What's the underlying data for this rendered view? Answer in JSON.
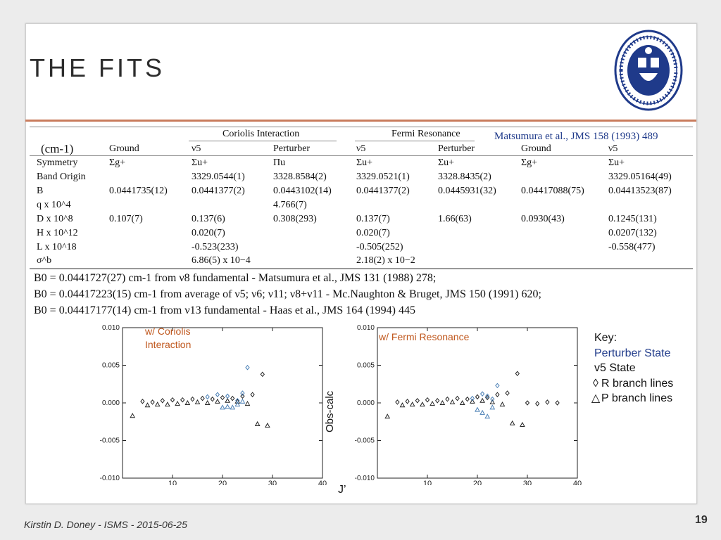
{
  "title": "THE FITS",
  "citation": "Matsumura et al., JMS 158 (1993) 489",
  "table": {
    "unit_label": "(cm-1)",
    "group_headers": [
      "Coriolis Interaction",
      "Fermi Resonance"
    ],
    "columns": [
      "Ground",
      "ν5",
      "Perturber",
      "ν5",
      "Perturber",
      "Ground",
      "ν5"
    ],
    "row_labels": [
      "Symmetry",
      "Band Origin",
      "B",
      "q x 10^4",
      "D x 10^8",
      "H x 10^12",
      "L x 10^18",
      "σ^b"
    ],
    "symmetry": [
      "Σg+",
      "Σu+",
      "Πu",
      "Σu+",
      "Σu+",
      "Σg+",
      "Σu+"
    ],
    "band_origin": [
      "",
      "3329.0544(1)",
      "3328.8584(2)",
      "3329.0521(1)",
      "3328.8435(2)",
      "",
      "3329.05164(49)"
    ],
    "B": [
      "0.0441735(12)",
      "0.0441377(2)",
      "0.0443102(14)",
      "0.0441377(2)",
      "0.0445931(32)",
      "0.04417088(75)",
      "0.04413523(87)"
    ],
    "q": [
      "",
      "",
      "4.766(7)",
      "",
      "",
      "",
      ""
    ],
    "D": [
      "0.107(7)",
      "0.137(6)",
      "0.308(293)",
      "0.137(7)",
      "1.66(63)",
      "0.0930(43)",
      "0.1245(131)"
    ],
    "H": [
      "",
      "0.020(7)",
      "",
      "0.020(7)",
      "",
      "",
      "0.0207(132)"
    ],
    "L": [
      "",
      "-0.523(233)",
      "",
      "-0.505(252)",
      "",
      "",
      "-0.558(477)"
    ],
    "sigma": [
      "",
      "6.86(5) x 10−4",
      "",
      "2.18(2) x 10−2",
      "",
      "",
      ""
    ]
  },
  "b0_lines": [
    "B0 = 0.0441727(27) cm-1 from ν8 fundamental - Matsumura et al., JMS 131 (1988) 278;",
    "B0 = 0.04417223(15) cm-1 from average of ν5; ν6; ν11; ν8+ν11 - Mc.Naughton & Bruget, JMS 150 (1991) 620;",
    "B0 = 0.04417177(14) cm-1 from ν13 fundamental - Haas et al., JMS 164 (1994) 445"
  ],
  "plots": {
    "ylabel": "Obs-calc",
    "xlabel": "J’",
    "left_label": "w/ Coriolis Interaction",
    "right_label": "w/ Fermi Resonance"
  },
  "key": {
    "title": "Key:",
    "perturber": "Perturber State",
    "v5": "v5 State",
    "r_branch": "R branch lines",
    "p_branch": "P branch lines"
  },
  "footer": "Kirstin D. Doney - ISMS - 2015-06-25",
  "page_number": "19",
  "colors": {
    "accent_rule": "#c97c5d",
    "seal_blue": "#1f3a8a",
    "label_orange": "#c0581e"
  },
  "chart_data": [
    {
      "type": "scatter",
      "title": "w/ Coriolis Interaction",
      "xlabel": "J’",
      "ylabel": "Obs-calc",
      "xlim": [
        0,
        40
      ],
      "ylim": [
        -0.01,
        0.01
      ],
      "xticks": [
        "10",
        "20",
        "30",
        "40"
      ],
      "yticks": [
        "0.010",
        "0.005",
        "0.000",
        "-0.005",
        "-0.010"
      ],
      "series": [
        {
          "name": "v5 R branch",
          "marker": "diamond",
          "color": "#222222",
          "x": [
            4,
            6,
            8,
            10,
            12,
            14,
            16,
            18,
            20,
            22,
            24,
            26,
            28
          ],
          "y": [
            0.0002,
            0.0001,
            0.0003,
            0.0004,
            0.0004,
            0.0005,
            0.0006,
            0.0005,
            0.0007,
            0.0006,
            0.0009,
            0.0011,
            0.0038
          ]
        },
        {
          "name": "v5 P branch",
          "marker": "triangle",
          "color": "#222222",
          "x": [
            2,
            5,
            7,
            9,
            11,
            13,
            15,
            17,
            19,
            21,
            23,
            25,
            27,
            29
          ],
          "y": [
            -0.0017,
            -0.0003,
            -0.0002,
            -0.0002,
            -0.0001,
            0.0,
            0.0001,
            0.0,
            0.0002,
            0.0003,
            0.0002,
            -0.0001,
            -0.0028,
            -0.003
          ]
        },
        {
          "name": "Perturber R branch",
          "marker": "diamond",
          "color": "#4a7fb5",
          "x": [
            17,
            19,
            21,
            23,
            24,
            25
          ],
          "y": [
            0.0008,
            0.0011,
            0.0009,
            0.0003,
            0.0013,
            0.0047
          ]
        },
        {
          "name": "Perturber P branch",
          "marker": "triangle",
          "color": "#4a7fb5",
          "x": [
            20,
            21,
            22,
            23,
            24
          ],
          "y": [
            -0.0006,
            -0.0005,
            -0.0006,
            -0.0002,
            0.0002
          ]
        }
      ]
    },
    {
      "type": "scatter",
      "title": "w/ Fermi Resonance",
      "xlabel": "J’",
      "ylabel": "Obs-calc",
      "xlim": [
        0,
        40
      ],
      "ylim": [
        -0.01,
        0.01
      ],
      "xticks": [
        "10",
        "20",
        "30",
        "40"
      ],
      "yticks": [
        "0.010",
        "0.005",
        "0.000",
        "-0.005",
        "-0.010"
      ],
      "series": [
        {
          "name": "v5 R branch",
          "marker": "diamond",
          "color": "#222222",
          "x": [
            4,
            6,
            8,
            10,
            12,
            14,
            16,
            18,
            20,
            22,
            24,
            26,
            28,
            30,
            32,
            34,
            36
          ],
          "y": [
            0.0001,
            0.0002,
            0.0003,
            0.0004,
            0.0003,
            0.0005,
            0.0006,
            0.0005,
            0.0008,
            0.0007,
            0.0011,
            0.0013,
            0.0039,
            0.0,
            -0.0001,
            0.0001,
            0.0
          ]
        },
        {
          "name": "v5 P branch",
          "marker": "triangle",
          "color": "#222222",
          "x": [
            2,
            5,
            7,
            9,
            11,
            13,
            15,
            17,
            19,
            21,
            23,
            25,
            27,
            29
          ],
          "y": [
            -0.0018,
            -0.0003,
            -0.0002,
            -0.0002,
            -0.0001,
            0.0,
            0.0001,
            0.0,
            0.0002,
            0.0003,
            0.0001,
            -0.0002,
            -0.0027,
            -0.0029
          ]
        },
        {
          "name": "Perturber R branch",
          "marker": "diamond",
          "color": "#4a7fb5",
          "x": [
            19,
            21,
            22,
            23,
            24
          ],
          "y": [
            0.0006,
            0.0012,
            0.0009,
            0.0005,
            0.0023
          ]
        },
        {
          "name": "Perturber P branch",
          "marker": "triangle",
          "color": "#4a7fb5",
          "x": [
            20,
            21,
            22,
            23
          ],
          "y": [
            -0.0009,
            -0.0013,
            -0.0018,
            -0.0006
          ]
        }
      ]
    }
  ]
}
